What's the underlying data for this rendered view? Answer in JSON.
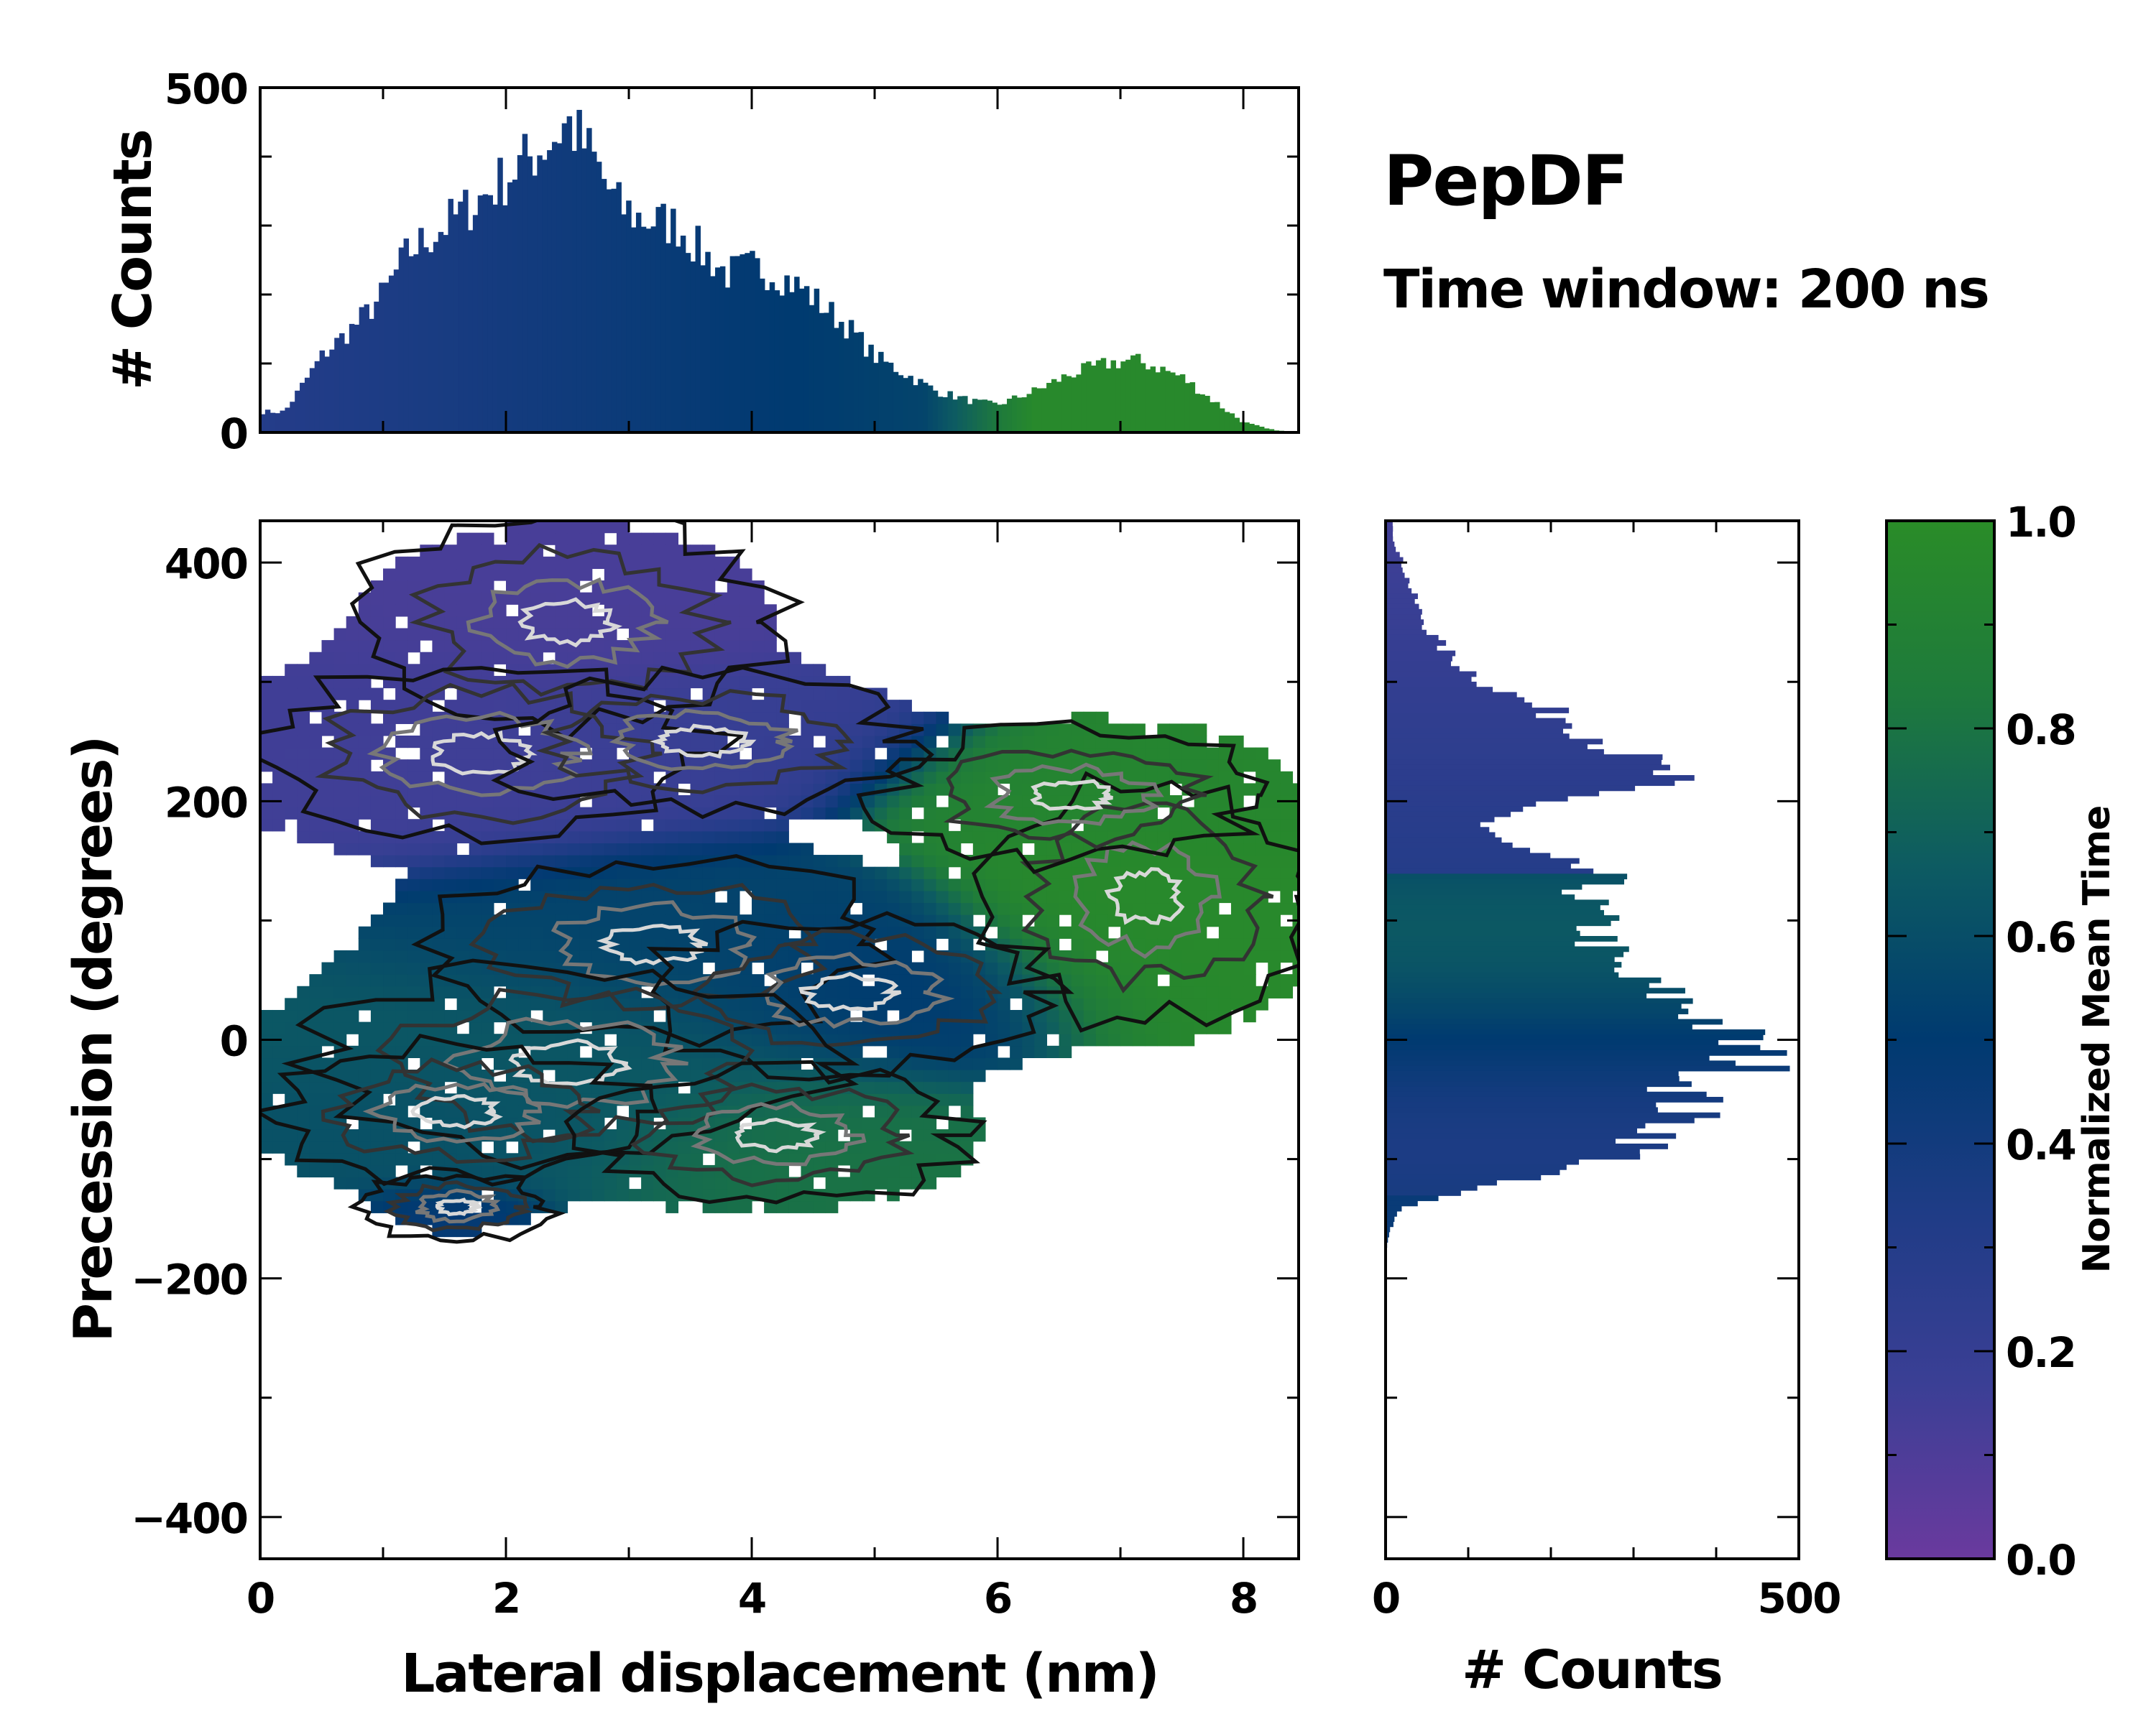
{
  "chart_data": {
    "type": "joint-histogram-heatmap",
    "title": "PepDF",
    "subtitle": "Time window: 200 ns",
    "main": {
      "type": "heatmap",
      "xlabel": "Lateral displacement (nm)",
      "ylabel": "Precession (degrees)",
      "xlim": [
        0,
        8.45
      ],
      "ylim": [
        -435,
        435
      ],
      "xticks": [
        0,
        2,
        4,
        6,
        8
      ],
      "xtick_labels": [
        "0",
        "2",
        "4",
        "6",
        "8"
      ],
      "yticks": [
        -400,
        -200,
        0,
        200,
        400
      ],
      "ytick_labels": [
        "−400",
        "−200",
        "0",
        "200",
        "400"
      ],
      "density_clusters": [
        {
          "x": 2.5,
          "y": 350,
          "sx": 0.9,
          "sy": 45,
          "w": 0.35,
          "t": 0.12
        },
        {
          "x": 1.8,
          "y": 240,
          "sx": 1.0,
          "sy": 40,
          "w": 0.9,
          "t": 0.15
        },
        {
          "x": 3.6,
          "y": 250,
          "sx": 0.9,
          "sy": 30,
          "w": 0.5,
          "t": 0.2
        },
        {
          "x": 7.2,
          "y": 120,
          "sx": 0.7,
          "sy": 55,
          "w": 0.7,
          "t": 0.97
        },
        {
          "x": 6.6,
          "y": 205,
          "sx": 0.8,
          "sy": 30,
          "w": 0.5,
          "t": 0.92
        },
        {
          "x": 3.2,
          "y": 80,
          "sx": 1.0,
          "sy": 40,
          "w": 0.8,
          "t": 0.55
        },
        {
          "x": 4.8,
          "y": 40,
          "sx": 0.9,
          "sy": 35,
          "w": 0.6,
          "t": 0.5
        },
        {
          "x": 2.5,
          "y": -20,
          "sx": 1.1,
          "sy": 45,
          "w": 1.0,
          "t": 0.65
        },
        {
          "x": 1.6,
          "y": -60,
          "sx": 0.8,
          "sy": 30,
          "w": 0.6,
          "t": 0.6
        },
        {
          "x": 4.2,
          "y": -80,
          "sx": 0.8,
          "sy": 30,
          "w": 0.5,
          "t": 0.8
        },
        {
          "x": 1.6,
          "y": -140,
          "sx": 0.4,
          "sy": 15,
          "w": 0.15,
          "t": 0.45
        }
      ]
    },
    "top_histogram": {
      "type": "bar",
      "ylabel": "# Counts",
      "xlim": [
        0,
        8.45
      ],
      "ylim": [
        0,
        500
      ],
      "yticks": [
        0,
        500
      ],
      "ytick_labels": [
        "0",
        "500"
      ],
      "x": [
        0.2,
        0.5,
        0.8,
        1.0,
        1.2,
        1.5,
        1.8,
        2.0,
        2.2,
        2.4,
        2.5,
        2.7,
        2.9,
        3.1,
        3.4,
        3.6,
        3.8,
        4.0,
        4.2,
        4.4,
        4.6,
        4.8,
        5.0,
        5.3,
        5.5,
        5.8,
        6.0,
        6.3,
        6.6,
        6.9,
        7.1,
        7.3,
        7.5,
        7.8,
        8.0,
        8.2,
        8.4
      ],
      "values": [
        30,
        110,
        160,
        200,
        260,
        300,
        340,
        370,
        400,
        430,
        450,
        400,
        330,
        310,
        300,
        260,
        230,
        240,
        230,
        210,
        180,
        150,
        110,
        80,
        60,
        45,
        40,
        60,
        85,
        100,
        105,
        95,
        80,
        40,
        15,
        5,
        0
      ]
    },
    "right_histogram": {
      "type": "bar",
      "orientation": "horizontal",
      "xlabel": "# Counts",
      "xlim": [
        0,
        500
      ],
      "ylim": [
        -435,
        435
      ],
      "xticks": [
        0,
        500
      ],
      "xtick_labels": [
        "0",
        "500"
      ],
      "y": [
        420,
        400,
        380,
        360,
        340,
        320,
        300,
        280,
        260,
        240,
        220,
        200,
        180,
        160,
        140,
        120,
        100,
        80,
        60,
        40,
        20,
        0,
        -20,
        -40,
        -60,
        -80,
        -100,
        -120,
        -140,
        -160,
        -180,
        -200
      ],
      "values": [
        10,
        20,
        30,
        40,
        55,
        80,
        120,
        180,
        250,
        290,
        340,
        200,
        110,
        150,
        260,
        240,
        250,
        260,
        270,
        330,
        390,
        420,
        450,
        370,
        360,
        340,
        280,
        130,
        20,
        5,
        0,
        0
      ]
    },
    "colorbar": {
      "label": "Normalized Mean Time",
      "range": [
        0,
        1
      ],
      "ticks": [
        0.0,
        0.2,
        0.4,
        0.6,
        0.8,
        1.0
      ],
      "tick_labels": [
        "0.0",
        "0.2",
        "0.4",
        "0.6",
        "0.8",
        "1.0"
      ],
      "colors": [
        "#6a3a9e",
        "#3b3f95",
        "#1f3c86",
        "#003a70",
        "#0d5b62",
        "#1e7a3c",
        "#2a8c28"
      ]
    }
  }
}
